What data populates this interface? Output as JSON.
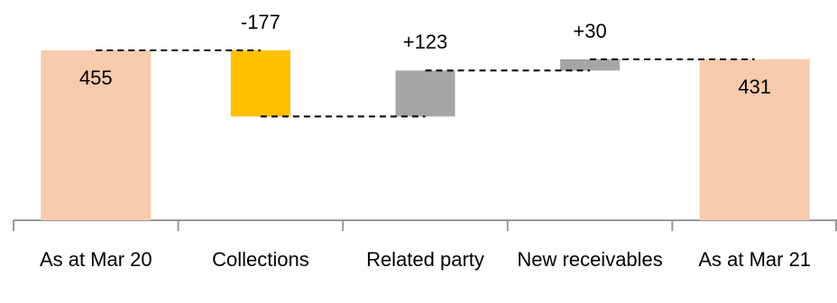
{
  "chart_data": {
    "type": "waterfall",
    "categories": [
      "As at Mar 20",
      "Collections",
      "Related party",
      "New receivables",
      "As at Mar 21"
    ],
    "values": [
      455,
      -177,
      123,
      30,
      431
    ],
    "value_labels": [
      "455",
      "-177",
      "+123",
      "+30",
      "431"
    ],
    "totals": [
      true,
      false,
      false,
      false,
      true
    ],
    "colors": [
      "#f8cbad",
      "#ffc000",
      "#a5a5a5",
      "#a5a5a5",
      "#f8cbad"
    ]
  }
}
